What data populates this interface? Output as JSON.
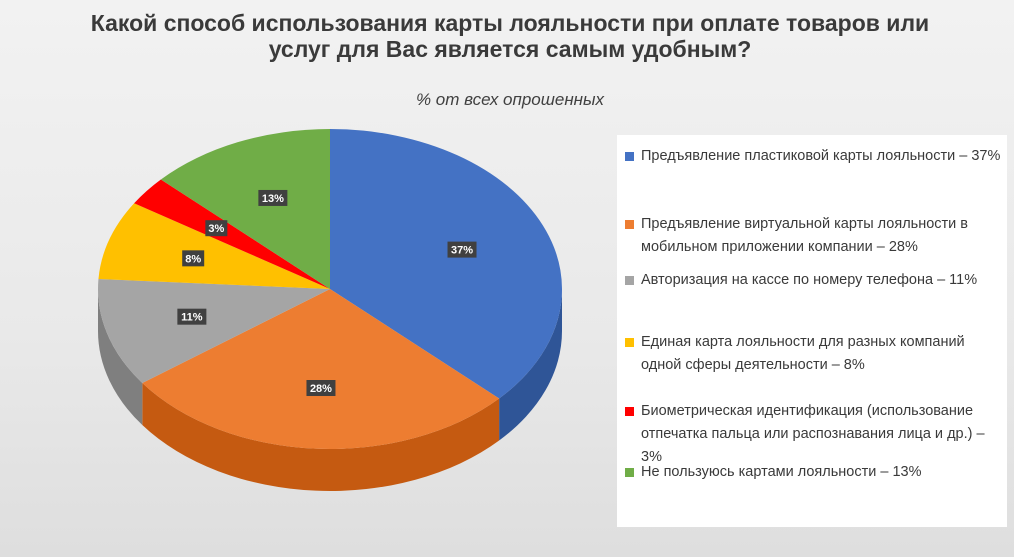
{
  "chart_data": {
    "type": "pie",
    "title": "Какой способ использования карты лояльности при оплате товаров или услуг для Вас является самым удобным?",
    "subtitle": "% от всех опрошенных",
    "unit": "%",
    "slices": [
      {
        "label": "Предъявление пластиковой карты лояльности – 37%",
        "value": 37,
        "data_label": "37%",
        "color": "#4472C4",
        "side": "#2F5597"
      },
      {
        "label": "Предъявление виртуальной карты лояльности в мобильном приложении компании – 28%",
        "value": 28,
        "data_label": "28%",
        "color": "#ED7D31",
        "side": "#C55A11"
      },
      {
        "label": "Авторизация на кассе по номеру телефона – 11%",
        "value": 11,
        "data_label": "11%",
        "color": "#A5A5A5",
        "side": "#7F7F7F"
      },
      {
        "label": "Единая карта лояльности для разных компаний одной сферы деятельности – 8%",
        "value": 8,
        "data_label": "8%",
        "color": "#FFC000",
        "side": "#BF9000"
      },
      {
        "label": "Биометрическая идентификация (использование отпечатка пальца или распознавания лица и др.) – 3%",
        "value": 3,
        "data_label": "3%",
        "color": "#FF0000",
        "side": "#B00000"
      },
      {
        "label": "Не пользуюсь картами лояльности – 13%",
        "value": 13,
        "data_label": "13%",
        "color": "#70AD47",
        "side": "#507E32"
      }
    ],
    "legend_position": "right"
  }
}
